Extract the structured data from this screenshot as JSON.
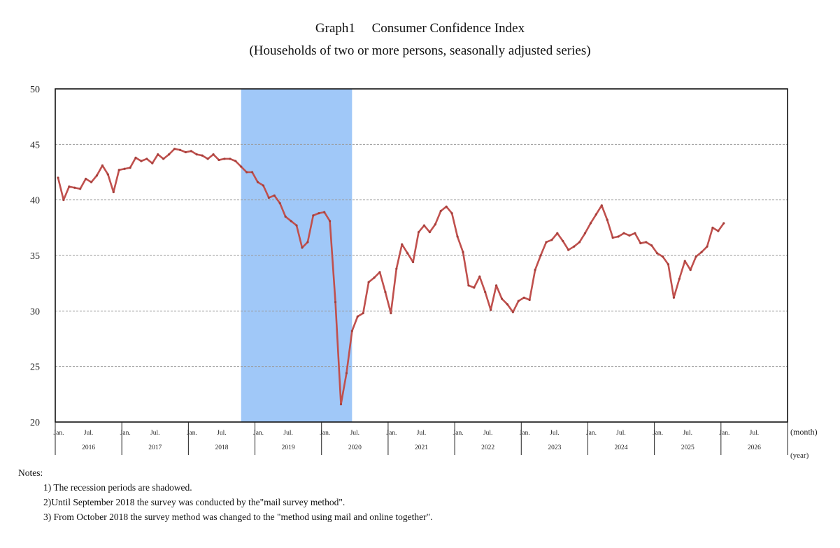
{
  "chart_data": {
    "type": "line",
    "title": "Graph1  Consumer Confidence Index",
    "subtitle": "(Households of two or more persons, seasonally adjusted series)",
    "xlabel_month": "(month)",
    "xlabel_year": "(year)",
    "ylabel": "",
    "ylim": [
      20,
      50
    ],
    "yticks": [
      20,
      25,
      30,
      35,
      40,
      45,
      50
    ],
    "grid": true,
    "x_start": "2016-01",
    "x_end_axis": "2026-12",
    "month_tick_labels": [
      "Jan.",
      "Jul."
    ],
    "years": [
      "2016",
      "2017",
      "2018",
      "2019",
      "2020",
      "2021",
      "2022",
      "2023",
      "2024",
      "2025",
      "2026"
    ],
    "recession_shading": [
      {
        "start": "2018-10",
        "end": "2020-05"
      }
    ],
    "colors": {
      "line": "#c0504d",
      "shade": "#a0c8f8",
      "grid": "#9a9a9a"
    },
    "series": [
      {
        "name": "Consumer Confidence Index",
        "start": "2016-01",
        "values": [
          42.0,
          40.0,
          41.2,
          41.1,
          41.0,
          41.9,
          41.6,
          42.2,
          43.1,
          42.3,
          40.7,
          42.7,
          42.8,
          42.9,
          43.8,
          43.5,
          43.7,
          43.3,
          44.1,
          43.7,
          44.1,
          44.6,
          44.5,
          44.3,
          44.4,
          44.1,
          44.0,
          43.7,
          44.1,
          43.6,
          43.7,
          43.7,
          43.5,
          43.0,
          42.5,
          42.5,
          41.6,
          41.3,
          40.2,
          40.4,
          39.7,
          38.5,
          38.1,
          37.7,
          35.7,
          36.2,
          38.6,
          38.8,
          38.9,
          38.1,
          30.8,
          21.6,
          24.4,
          28.2,
          29.5,
          29.8,
          32.6,
          33.0,
          33.5,
          31.7,
          29.8,
          33.8,
          36.0,
          35.2,
          34.4,
          37.1,
          37.7,
          37.1,
          37.8,
          39.0,
          39.4,
          38.8,
          36.7,
          35.3,
          32.3,
          32.1,
          33.1,
          31.7,
          30.1,
          32.3,
          31.1,
          30.6,
          29.9,
          30.9,
          31.2,
          31.0,
          33.7,
          35.0,
          36.2,
          36.4,
          37.0,
          36.3,
          35.5,
          35.8,
          36.2,
          37.0,
          37.9,
          38.7,
          39.5,
          38.2,
          36.6,
          36.7,
          37.0,
          36.8,
          37.0,
          36.1,
          36.2,
          35.9,
          35.2,
          34.9,
          34.2,
          31.2,
          32.9,
          34.5,
          33.7,
          34.9,
          35.3,
          35.8,
          37.5,
          37.2,
          37.9
        ]
      }
    ]
  },
  "notes": {
    "heading": "Notes:",
    "items": [
      "1) The recession periods are shadowed.",
      "2)Until September 2018 the survey was conducted by the\"mail survey method\".",
      "3) From October 2018 the survey method was changed to the \"method using mail and online together\"."
    ]
  }
}
